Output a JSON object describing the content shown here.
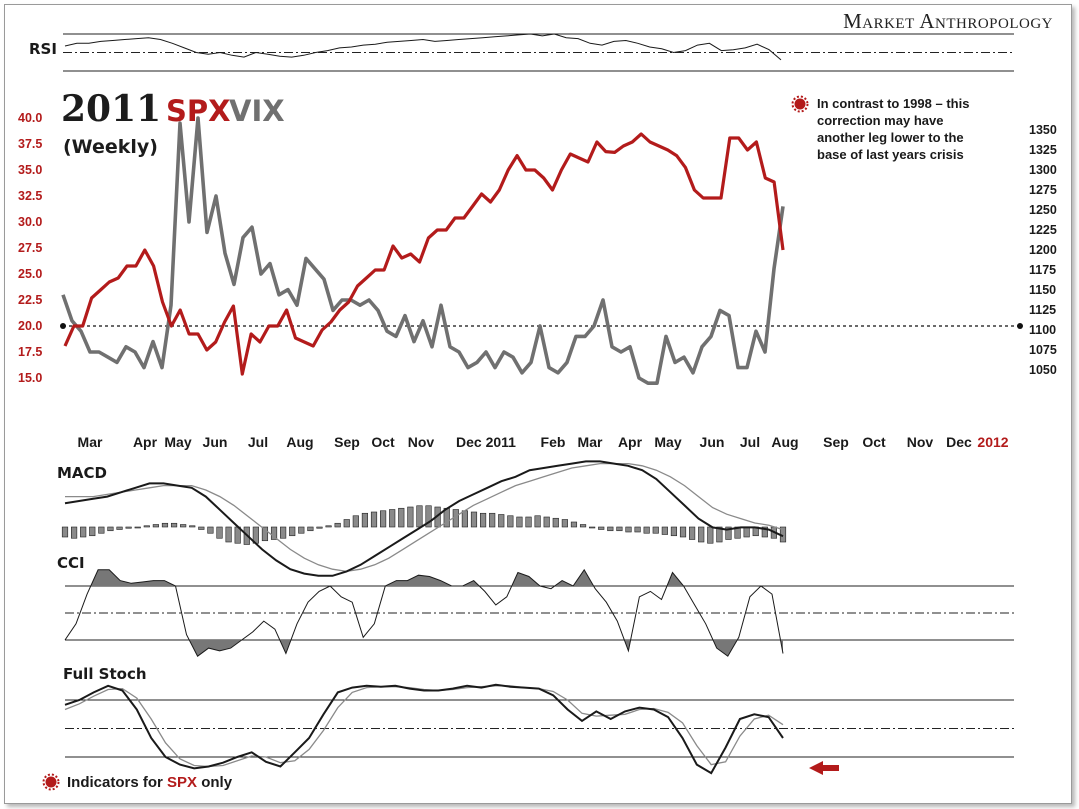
{
  "brand": "Market Anthropology",
  "title": {
    "year": "2011",
    "spx": "SPX",
    "vix": "VIX",
    "subtitle": "(Weekly)"
  },
  "annotation": {
    "lines": [
      "In contrast to 1998 – this",
      "correction may have",
      "another leg lower to the",
      "base of last years crisis"
    ],
    "icon": "red-starburst-bullet-icon"
  },
  "footnote": {
    "prefix": "Indicators for ",
    "highlight": "SPX",
    "suffix": " only",
    "icon": "red-starburst-bullet-icon"
  },
  "colors": {
    "spx": "#b31b1b",
    "vix": "#707070",
    "accent": "#b31b1b",
    "indicator": "#1a1a1a",
    "indicator_signal": "#8a8a8a",
    "fill": "#777777"
  },
  "chart_data": [
    {
      "type": "line",
      "panel": "RSI",
      "label": "RSI",
      "ylim": [
        0,
        100
      ],
      "reference_lines": [
        30,
        50,
        70
      ],
      "values": [
        57,
        60,
        60,
        62,
        63,
        64,
        65,
        66,
        64,
        60,
        55,
        50,
        48,
        50,
        47,
        45,
        50,
        48,
        46,
        45,
        47,
        50,
        52,
        55,
        56,
        58,
        59,
        61,
        62,
        63,
        64,
        62,
        63,
        64,
        65,
        66,
        67,
        68,
        69,
        70,
        68,
        70,
        66,
        65,
        60,
        58,
        62,
        63,
        60,
        56,
        54,
        50,
        52,
        58,
        60,
        52,
        53,
        55,
        59,
        53,
        42
      ]
    },
    {
      "type": "line",
      "panel": "main",
      "x_labels": [
        "Mar",
        "Apr",
        "May",
        "Jun",
        "Jul",
        "Aug",
        "Sep",
        "Oct",
        "Nov",
        "Dec 2011",
        "Feb",
        "Mar",
        "Apr",
        "May",
        "Jun",
        "Jul",
        "Aug",
        "Sep",
        "Oct",
        "Nov",
        "Dec",
        "2012"
      ],
      "highlight_x_label": "2012",
      "left_axis": {
        "series": "VIX",
        "ticks": [
          "40.0",
          "37.5",
          "35.0",
          "32.5",
          "30.0",
          "27.5",
          "25.0",
          "22.5",
          "20.0",
          "17.5",
          "15.0"
        ]
      },
      "right_axis": {
        "series": "SPX",
        "ticks": [
          "1350",
          "1325",
          "1300",
          "1275",
          "1250",
          "1225",
          "1200",
          "1175",
          "1150",
          "1125",
          "1100",
          "1075",
          "1050"
        ]
      },
      "reference_line": {
        "axis": "left",
        "value": 20.0
      },
      "series": [
        {
          "name": "SPX",
          "axis": "right",
          "values": [
            1080,
            1105,
            1105,
            1140,
            1150,
            1160,
            1165,
            1180,
            1180,
            1200,
            1180,
            1135,
            1105,
            1125,
            1095,
            1095,
            1075,
            1085,
            1110,
            1130,
            1045,
            1095,
            1085,
            1105,
            1105,
            1125,
            1090,
            1085,
            1080,
            1100,
            1110,
            1125,
            1135,
            1155,
            1165,
            1175,
            1175,
            1205,
            1190,
            1195,
            1185,
            1215,
            1225,
            1225,
            1240,
            1240,
            1255,
            1270,
            1260,
            1275,
            1300,
            1318,
            1300,
            1300,
            1290,
            1275,
            1300,
            1320,
            1315,
            1310,
            1335,
            1323,
            1322,
            1330,
            1335,
            1345,
            1335,
            1330,
            1325,
            1318,
            1303,
            1275,
            1265,
            1265,
            1265,
            1340,
            1340,
            1325,
            1335,
            1290,
            1285,
            1200
          ]
        },
        {
          "name": "VIX",
          "axis": "left",
          "values": [
            23.0,
            20.5,
            19.5,
            17.5,
            17.5,
            17.0,
            16.5,
            18.0,
            17.5,
            16.0,
            18.5,
            16.0,
            22.0,
            39.5,
            30.0,
            40.0,
            29.0,
            32.5,
            27.0,
            24.0,
            28.5,
            29.5,
            25.0,
            26.0,
            23.0,
            23.5,
            22.0,
            26.5,
            25.5,
            24.5,
            21.5,
            22.5,
            22.5,
            22.0,
            22.5,
            21.5,
            19.5,
            19.0,
            21.0,
            18.5,
            20.5,
            18.0,
            22.0,
            18.0,
            17.5,
            16.0,
            16.5,
            17.5,
            16.0,
            17.5,
            17.0,
            15.5,
            16.5,
            20.0,
            16.0,
            15.5,
            16.5,
            19.0,
            19.0,
            20.0,
            22.5,
            18.0,
            17.5,
            18.0,
            15.0,
            14.5,
            14.5,
            19.0,
            16.5,
            17.0,
            15.5,
            18.0,
            19.0,
            21.5,
            21.0,
            16.0,
            16.0,
            19.5,
            17.5,
            25.5,
            31.5
          ]
        }
      ]
    },
    {
      "type": "line",
      "panel": "MACD",
      "label": "MACD",
      "series": [
        {
          "name": "MACD",
          "values": [
            9,
            10,
            11,
            12,
            14,
            16,
            18,
            18,
            17,
            16,
            12,
            6,
            0,
            -6,
            -12,
            -17,
            -21,
            -23,
            -24,
            -24,
            -22,
            -19,
            -15,
            -11,
            -7,
            -3,
            1,
            6,
            10,
            13,
            16,
            19,
            21,
            24,
            25,
            26,
            27,
            28,
            28,
            27,
            26,
            24,
            20,
            14,
            8,
            2,
            -2,
            -3,
            -2,
            -2,
            -3,
            -6
          ]
        },
        {
          "name": "Signal",
          "values": [
            12,
            12,
            12,
            13,
            14,
            15,
            16,
            17,
            17,
            17,
            15,
            12,
            8,
            3,
            -2,
            -7,
            -12,
            -16,
            -19,
            -21,
            -22,
            -21,
            -19,
            -16,
            -12,
            -8,
            -4,
            0,
            4,
            8,
            11,
            14,
            17,
            19,
            21,
            23,
            25,
            26,
            27,
            27,
            27,
            26,
            24,
            21,
            17,
            12,
            7,
            4,
            2,
            0,
            -1,
            -3
          ]
        }
      ],
      "histogram": [
        -8,
        -9,
        -8,
        -7,
        -5,
        -3,
        -2,
        -1,
        0,
        1,
        2,
        3,
        3,
        2,
        1,
        -2,
        -5,
        -9,
        -12,
        -13,
        -14,
        -13,
        -11,
        -10,
        -9,
        -7,
        -5,
        -3,
        -1,
        1,
        3,
        6,
        9,
        11,
        12,
        13,
        14,
        15,
        16,
        17,
        17,
        16,
        15,
        14,
        13,
        12,
        11,
        11,
        10,
        9,
        8,
        8,
        9,
        8,
        7,
        6,
        4,
        2,
        0,
        -2,
        -3,
        -3,
        -4,
        -4,
        -5,
        -5,
        -6,
        -7,
        -8,
        -10,
        -12,
        -13,
        -12,
        -10,
        -9,
        -8,
        -7,
        -8,
        -9,
        -12
      ]
    },
    {
      "type": "line",
      "panel": "CCI",
      "label": "CCI",
      "reference_lines": [
        -100,
        0,
        100
      ],
      "values": [
        -100,
        -40,
        70,
        160,
        160,
        120,
        110,
        115,
        120,
        120,
        100,
        -80,
        -160,
        -130,
        -140,
        -130,
        -100,
        -70,
        -30,
        -60,
        -150,
        -40,
        40,
        80,
        100,
        60,
        40,
        -90,
        -40,
        100,
        120,
        120,
        140,
        135,
        120,
        100,
        100,
        120,
        80,
        30,
        60,
        150,
        135,
        100,
        90,
        120,
        100,
        160,
        90,
        40,
        -30,
        -140,
        60,
        80,
        50,
        150,
        100,
        30,
        -40,
        -130,
        -160,
        -90,
        60,
        100,
        70,
        -150
      ]
    },
    {
      "type": "line",
      "panel": "Full Stoch",
      "label": "Full Stoch",
      "reference_lines": [
        20,
        50,
        80
      ],
      "series": [
        {
          "name": "%K",
          "values": [
            75,
            80,
            88,
            95,
            90,
            70,
            40,
            20,
            12,
            8,
            10,
            14,
            20,
            25,
            15,
            10,
            25,
            40,
            65,
            88,
            93,
            95,
            94,
            95,
            92,
            90,
            90,
            92,
            95,
            93,
            96,
            94,
            93,
            92,
            85,
            70,
            58,
            68,
            60,
            68,
            72,
            70,
            62,
            40,
            12,
            3,
            30,
            60,
            65,
            62,
            40
          ]
        },
        {
          "name": "%D",
          "values": [
            70,
            76,
            84,
            91,
            92,
            82,
            60,
            35,
            18,
            11,
            10,
            11,
            16,
            21,
            20,
            14,
            16,
            28,
            48,
            72,
            88,
            93,
            94,
            94,
            93,
            91,
            90,
            91,
            93,
            94,
            95,
            95,
            93,
            92,
            89,
            80,
            66,
            63,
            64,
            65,
            70,
            71,
            67,
            56,
            32,
            12,
            15,
            42,
            60,
            64,
            54
          ]
        }
      ]
    }
  ]
}
